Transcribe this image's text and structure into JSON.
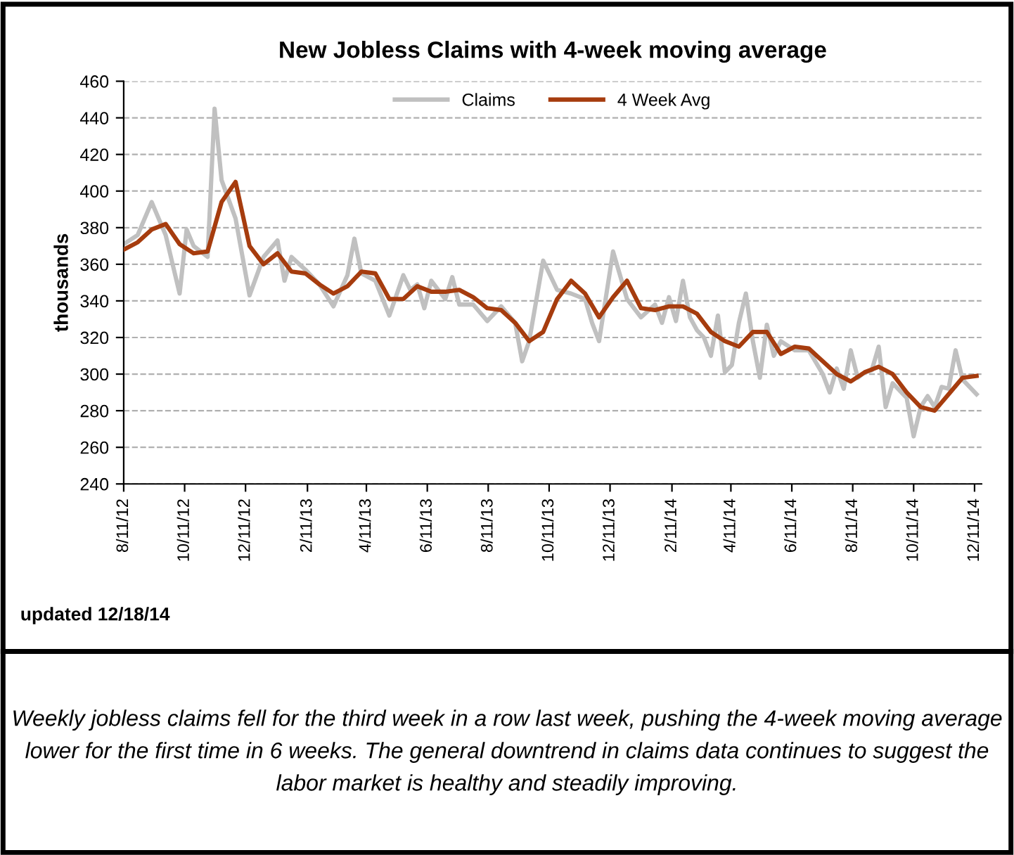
{
  "chart_data": {
    "type": "line",
    "title": "New Jobless Claims with 4-week moving average",
    "ylabel": "thousands",
    "xlim": [
      "2012-08-11",
      "2014-12-18"
    ],
    "ylim": [
      240,
      460
    ],
    "yticks": [
      240,
      260,
      280,
      300,
      320,
      340,
      360,
      380,
      400,
      420,
      440,
      460
    ],
    "xticks": [
      {
        "value": "2012-08-11",
        "label": "8/11/12"
      },
      {
        "value": "2012-10-11",
        "label": "10/11/12"
      },
      {
        "value": "2012-12-11",
        "label": "12/11/12"
      },
      {
        "value": "2013-02-11",
        "label": "2/11/13"
      },
      {
        "value": "2013-04-11",
        "label": "4/11/13"
      },
      {
        "value": "2013-06-11",
        "label": "6/11/13"
      },
      {
        "value": "2013-08-11",
        "label": "8/11/13"
      },
      {
        "value": "2013-10-11",
        "label": "10/11/13"
      },
      {
        "value": "2013-12-11",
        "label": "12/11/13"
      },
      {
        "value": "2014-02-11",
        "label": "2/11/14"
      },
      {
        "value": "2014-04-11",
        "label": "4/11/14"
      },
      {
        "value": "2014-06-11",
        "label": "6/11/14"
      },
      {
        "value": "2014-08-11",
        "label": "8/11/14"
      },
      {
        "value": "2014-10-11",
        "label": "10/11/14"
      },
      {
        "value": "2014-12-11",
        "label": "12/11/14"
      }
    ],
    "grid": "y",
    "legend": "top",
    "marker": "none",
    "line_style": "solid",
    "series": [
      {
        "name": "Claims",
        "color": "#c0c0c0",
        "x": [
          "2012-08-11",
          "2012-08-25",
          "2012-09-08",
          "2012-09-22",
          "2012-10-06",
          "2012-10-13",
          "2012-10-20",
          "2012-11-03",
          "2012-11-10",
          "2012-11-17",
          "2012-12-01",
          "2012-12-15",
          "2012-12-29",
          "2013-01-12",
          "2013-01-19",
          "2013-01-26",
          "2013-02-09",
          "2013-02-23",
          "2013-03-09",
          "2013-03-23",
          "2013-03-30",
          "2013-04-06",
          "2013-04-20",
          "2013-05-04",
          "2013-05-18",
          "2013-05-25",
          "2013-06-01",
          "2013-06-08",
          "2013-06-15",
          "2013-06-29",
          "2013-07-06",
          "2013-07-13",
          "2013-07-27",
          "2013-08-10",
          "2013-08-24",
          "2013-09-07",
          "2013-09-14",
          "2013-09-21",
          "2013-10-05",
          "2013-10-19",
          "2013-11-02",
          "2013-11-16",
          "2013-11-23",
          "2013-11-30",
          "2013-12-14",
          "2013-12-28",
          "2014-01-11",
          "2014-01-25",
          "2014-02-01",
          "2014-02-08",
          "2014-02-15",
          "2014-02-22",
          "2014-03-01",
          "2014-03-08",
          "2014-03-15",
          "2014-03-22",
          "2014-03-29",
          "2014-04-05",
          "2014-04-12",
          "2014-04-19",
          "2014-04-26",
          "2014-05-03",
          "2014-05-10",
          "2014-05-17",
          "2014-05-24",
          "2014-05-31",
          "2014-06-14",
          "2014-06-28",
          "2014-07-12",
          "2014-07-19",
          "2014-07-26",
          "2014-08-02",
          "2014-08-09",
          "2014-08-16",
          "2014-08-23",
          "2014-08-30",
          "2014-09-06",
          "2014-09-13",
          "2014-09-20",
          "2014-10-04",
          "2014-10-11",
          "2014-10-18",
          "2014-10-25",
          "2014-11-01",
          "2014-11-08",
          "2014-11-15",
          "2014-11-22",
          "2014-11-29",
          "2014-12-13"
        ],
        "values": [
          371,
          376,
          394,
          376,
          344,
          379,
          370,
          364,
          445,
          406,
          385,
          343,
          364,
          373,
          351,
          364,
          357,
          349,
          337,
          354,
          374,
          355,
          351,
          332,
          354,
          346,
          349,
          336,
          351,
          341,
          353,
          338,
          338,
          329,
          337,
          328,
          307,
          318,
          362,
          346,
          344,
          341,
          328,
          318,
          367,
          341,
          331,
          338,
          328,
          342,
          329,
          351,
          331,
          324,
          320,
          310,
          332,
          301,
          305,
          328,
          344,
          318,
          298,
          327,
          310,
          318,
          313,
          313,
          300,
          290,
          303,
          292,
          313,
          298,
          301,
          302,
          315,
          282,
          295,
          287,
          266,
          282,
          288,
          282,
          293,
          292,
          313,
          297,
          289
        ]
      },
      {
        "name": "4 Week Avg",
        "color": "#a63c0e",
        "x": [
          "2012-08-11",
          "2012-08-25",
          "2012-09-08",
          "2012-09-22",
          "2012-10-06",
          "2012-10-20",
          "2012-11-03",
          "2012-11-17",
          "2012-12-01",
          "2012-12-15",
          "2012-12-29",
          "2013-01-12",
          "2013-01-26",
          "2013-02-09",
          "2013-02-23",
          "2013-03-09",
          "2013-03-23",
          "2013-04-06",
          "2013-04-20",
          "2013-05-04",
          "2013-05-18",
          "2013-06-01",
          "2013-06-15",
          "2013-06-29",
          "2013-07-13",
          "2013-07-27",
          "2013-08-10",
          "2013-08-24",
          "2013-09-07",
          "2013-09-21",
          "2013-10-05",
          "2013-10-19",
          "2013-11-02",
          "2013-11-16",
          "2013-11-30",
          "2013-12-14",
          "2013-12-28",
          "2014-01-11",
          "2014-01-25",
          "2014-02-08",
          "2014-02-22",
          "2014-03-08",
          "2014-03-22",
          "2014-04-05",
          "2014-04-19",
          "2014-05-03",
          "2014-05-17",
          "2014-05-31",
          "2014-06-14",
          "2014-06-28",
          "2014-07-12",
          "2014-07-26",
          "2014-08-09",
          "2014-08-23",
          "2014-09-06",
          "2014-09-20",
          "2014-10-04",
          "2014-10-18",
          "2014-11-01",
          "2014-11-15",
          "2014-11-29",
          "2014-12-13"
        ],
        "values": [
          368,
          372,
          379,
          382,
          371,
          366,
          367,
          394,
          405,
          370,
          360,
          366,
          356,
          355,
          349,
          344,
          348,
          356,
          355,
          341,
          341,
          348,
          345,
          345,
          346,
          342,
          336,
          335,
          328,
          318,
          323,
          341,
          351,
          344,
          331,
          342,
          351,
          336,
          335,
          337,
          337,
          333,
          323,
          318,
          315,
          323,
          323,
          311,
          315,
          314,
          307,
          300,
          296,
          301,
          304,
          300,
          290,
          282,
          280,
          289,
          298,
          299
        ]
      }
    ],
    "annotations": [
      "updated 12/18/14",
      "Weekly jobless claims fell for the third week in a row last week, pushing the 4-week moving average lower for the first time in 6 weeks. The general downtrend in claims data continues to suggest the labor market is healthy and steadily improving."
    ]
  }
}
